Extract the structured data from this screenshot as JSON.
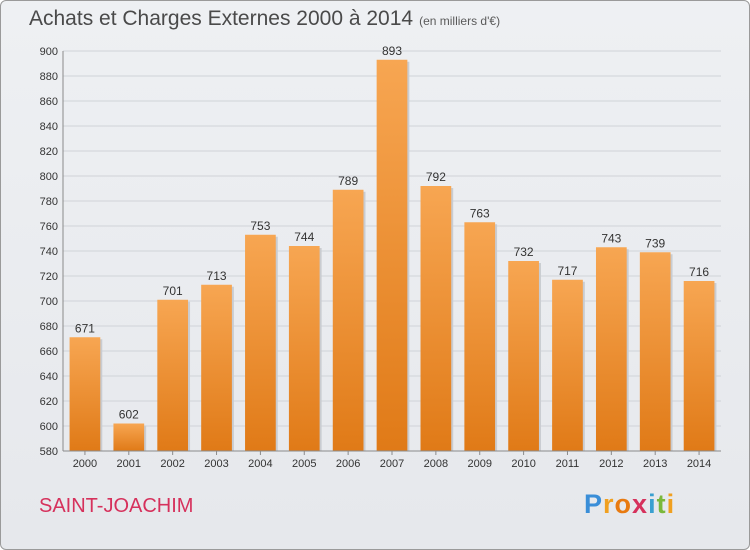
{
  "page": {
    "commune": "SAINT-JOACHIM"
  },
  "logo": {
    "letters": [
      "P",
      "r",
      "o",
      "x",
      "i",
      "t",
      "i"
    ]
  },
  "colors": {
    "bar_top": "#f7a652",
    "bar_bottom": "#e07a17",
    "logo": [
      "#3a8ed8",
      "#f0a020",
      "#e87a10",
      "#d6315c",
      "#3aa0d0",
      "#7ab83a",
      "#f0a020"
    ]
  },
  "chart_data": {
    "type": "bar",
    "title": "Achats et Charges Externes 2000 à 2014",
    "subtitle": "(en milliers d'€)",
    "categories": [
      "2000",
      "2001",
      "2002",
      "2003",
      "2004",
      "2005",
      "2006",
      "2007",
      "2008",
      "2009",
      "2010",
      "2011",
      "2012",
      "2013",
      "2014"
    ],
    "values": [
      671,
      602,
      701,
      713,
      753,
      744,
      789,
      893,
      792,
      763,
      732,
      717,
      743,
      739,
      716
    ],
    "ylim": [
      580,
      900
    ],
    "yticks": [
      580,
      600,
      620,
      640,
      660,
      680,
      700,
      720,
      740,
      760,
      780,
      800,
      820,
      840,
      860,
      880,
      900
    ],
    "grid": true
  }
}
